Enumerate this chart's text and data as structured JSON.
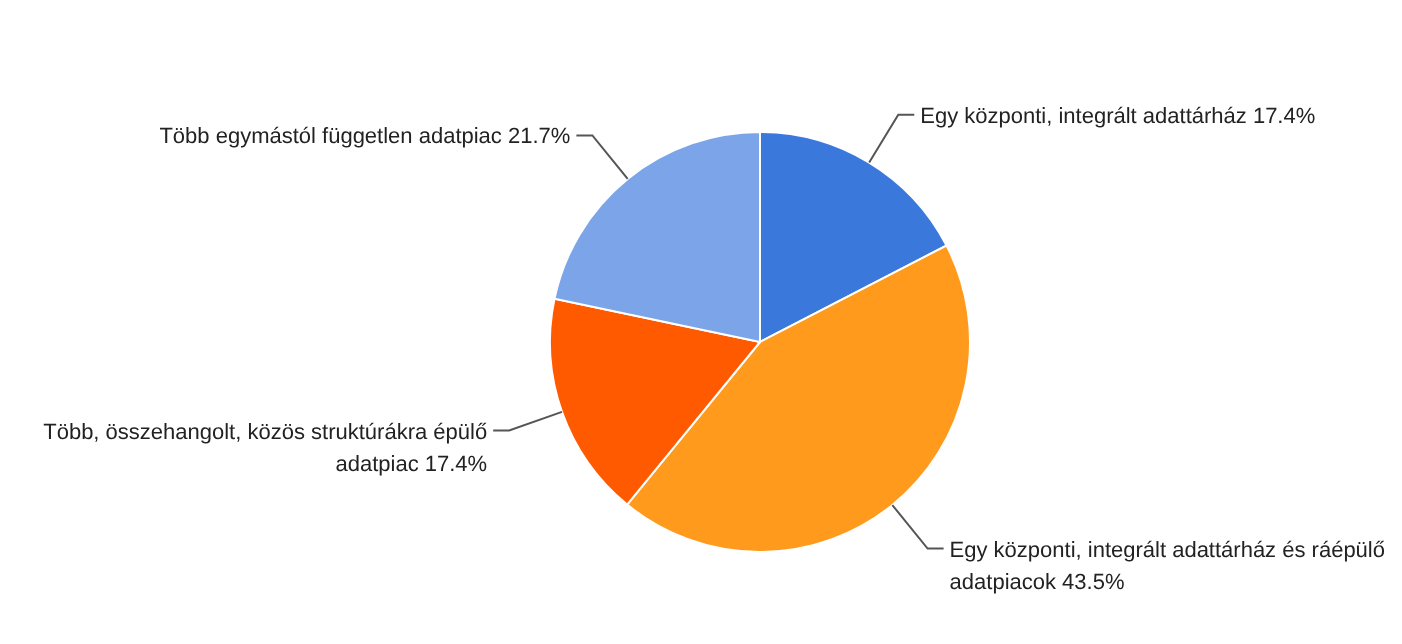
{
  "chart_data": {
    "type": "pie",
    "categories": [
      "Egy központi, integrált adattárház",
      "Egy központi, integrált adattárház és ráépülő adatpiacok",
      "Több, összehangolt, közös struktúrákra épülő adatpiac",
      "Több egymástól független adatpiac"
    ],
    "values": [
      17.4,
      43.5,
      17.4,
      21.7
    ],
    "value_labels": [
      "17.4%",
      "43.5%",
      "17.4%",
      "21.7%"
    ],
    "colors": [
      "#3a78dc",
      "#ff9a1c",
      "#ff5a00",
      "#7ba5e8"
    ],
    "legend": false
  }
}
